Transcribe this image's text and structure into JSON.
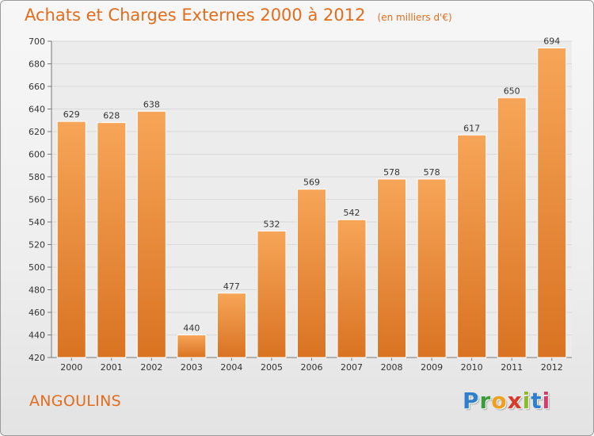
{
  "header": {
    "title": "Achats et Charges Externes 2000 à 2012",
    "subtitle": "(en milliers d'€)"
  },
  "footer": {
    "commune": "ANGOULINS",
    "logo_letters": [
      {
        "char": "P",
        "color": "#2f7fcf"
      },
      {
        "char": "r",
        "color": "#3a9b3a"
      },
      {
        "char": "o",
        "color": "#f0a020"
      },
      {
        "char": "x",
        "color": "#d83a2a"
      },
      {
        "char": "i",
        "color": "#8bbd2a"
      },
      {
        "char": "t",
        "color": "#2f7fcf"
      },
      {
        "char": "i",
        "color": "#d83a6a"
      }
    ]
  },
  "colors": {
    "bar_light": "#f7a558",
    "bar_dark": "#d97322",
    "title": "#e36c1d",
    "grid": "#d8d8d8"
  },
  "chart_data": {
    "type": "bar",
    "title": "Achats et Charges Externes 2000 à 2012",
    "subtitle": "(en milliers d'€)",
    "xlabel": "",
    "ylabel": "",
    "categories": [
      "2000",
      "2001",
      "2002",
      "2003",
      "2004",
      "2005",
      "2006",
      "2007",
      "2008",
      "2009",
      "2010",
      "2011",
      "2012"
    ],
    "values": [
      629,
      628,
      638,
      440,
      477,
      532,
      569,
      542,
      578,
      578,
      617,
      650,
      694
    ],
    "data_labels": [
      "629",
      "628",
      "638",
      "440",
      "477",
      "532",
      "569",
      "542",
      "578",
      "578",
      "617",
      "650",
      "694"
    ],
    "ylim": [
      420,
      700
    ],
    "yticks": [
      "420",
      "440",
      "460",
      "480",
      "500",
      "520",
      "540",
      "560",
      "580",
      "600",
      "620",
      "640",
      "660",
      "680",
      "700"
    ],
    "grid": true,
    "legend": "none"
  }
}
